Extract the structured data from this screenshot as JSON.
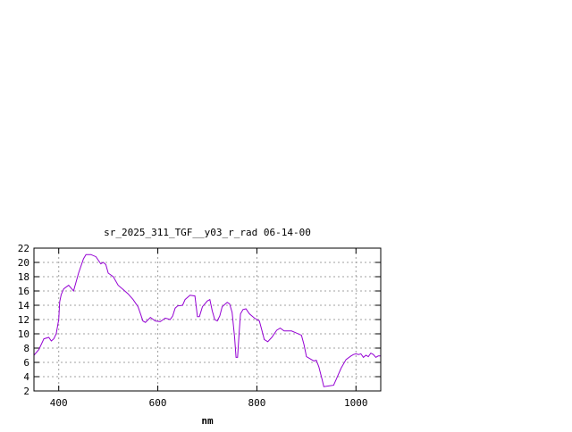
{
  "chart_data": {
    "type": "line",
    "title": "sr_2025_311_TGF__y03_r_rad 06-14-00",
    "xlabel": "nm",
    "ylabel": "",
    "xlim": [
      350,
      1050
    ],
    "ylim": [
      2,
      22
    ],
    "xticks": [
      400,
      600,
      800,
      1000
    ],
    "yticks": [
      2,
      4,
      6,
      8,
      10,
      12,
      14,
      16,
      18,
      20,
      22
    ],
    "grid": true,
    "legend": "none",
    "series": [
      {
        "color": "#9400d3",
        "x": [
          350,
          360,
          370,
          380,
          385,
          390,
          395,
          400,
          402,
          405,
          410,
          420,
          430,
          440,
          450,
          455,
          465,
          475,
          485,
          490,
          495,
          500,
          510,
          520,
          530,
          540,
          550,
          560,
          565,
          570,
          575,
          585,
          595,
          605,
          615,
          625,
          630,
          635,
          640,
          650,
          655,
          665,
          675,
          680,
          684,
          690,
          700,
          705,
          710,
          715,
          720,
          725,
          730,
          740,
          745,
          750,
          755,
          758,
          761,
          764,
          767,
          772,
          778,
          785,
          795,
          805,
          810,
          815,
          822,
          830,
          840,
          847,
          855,
          870,
          880,
          890,
          895,
          900,
          910,
          915,
          920,
          925,
          932,
          935,
          945,
          955,
          960,
          970,
          980,
          990,
          995,
          1000,
          1005,
          1010,
          1015,
          1020,
          1025,
          1030,
          1035,
          1040,
          1045,
          1050
        ],
        "y": [
          7.0,
          7.8,
          9.3,
          9.5,
          9.0,
          9.3,
          10.0,
          12.0,
          14.5,
          15.5,
          16.3,
          16.8,
          16.0,
          18.5,
          20.5,
          21.1,
          21.1,
          20.8,
          19.8,
          20.0,
          19.7,
          18.5,
          18.0,
          16.8,
          16.2,
          15.6,
          14.8,
          13.8,
          12.8,
          11.8,
          11.6,
          12.3,
          11.8,
          11.7,
          12.2,
          12.0,
          12.5,
          13.6,
          13.9,
          14.0,
          14.8,
          15.4,
          15.3,
          12.4,
          12.4,
          13.8,
          14.6,
          14.8,
          13.2,
          12.0,
          11.8,
          12.5,
          13.8,
          14.4,
          14.2,
          13.0,
          9.5,
          6.7,
          6.7,
          10.0,
          12.8,
          13.4,
          13.5,
          12.8,
          12.2,
          11.8,
          10.5,
          9.2,
          8.9,
          9.5,
          10.5,
          10.8,
          10.4,
          10.4,
          10.1,
          9.8,
          8.5,
          6.8,
          6.4,
          6.2,
          6.3,
          5.4,
          3.5,
          2.6,
          2.7,
          2.8,
          3.6,
          5.2,
          6.4,
          6.9,
          7.1,
          7.2,
          7.1,
          7.2,
          6.7,
          7.0,
          6.8,
          7.3,
          7.1,
          6.7,
          6.9,
          6.9
        ]
      }
    ]
  }
}
